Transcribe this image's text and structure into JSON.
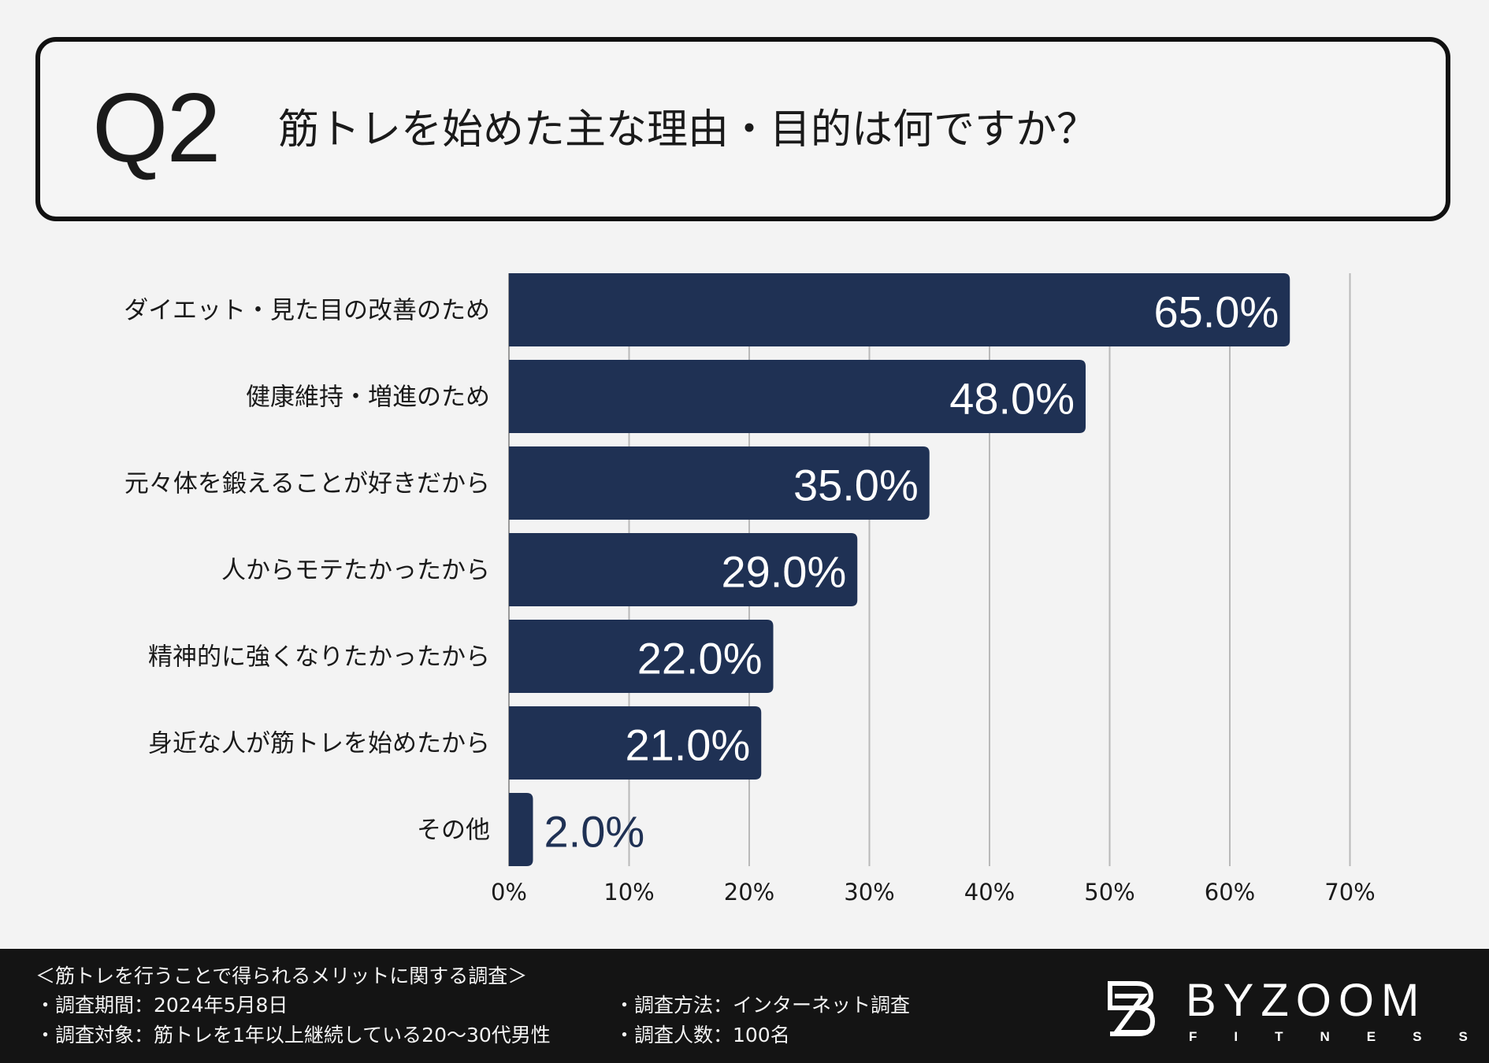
{
  "question": {
    "number": "Q2",
    "text": "筋トレを始めた主な理由・目的は何ですか？"
  },
  "chart_data": {
    "type": "bar",
    "orientation": "horizontal",
    "title": "筋トレを始めた主な理由・目的は何ですか？",
    "categories": [
      "ダイエット・見た目の改善のため",
      "健康維持・増進のため",
      "元々体を鍛えることが好きだから",
      "人からモテたかったから",
      "精神的に強くなりたかったから",
      "身近な人が筋トレを始めたから",
      "その他"
    ],
    "values": [
      65.0,
      48.0,
      35.0,
      29.0,
      22.0,
      21.0,
      2.0
    ],
    "value_labels": [
      "65.0%",
      "48.0%",
      "35.0%",
      "29.0%",
      "22.0%",
      "21.0%",
      "2.0%"
    ],
    "xlim": [
      0,
      70
    ],
    "xticks": [
      0,
      10,
      20,
      30,
      40,
      50,
      60,
      70
    ],
    "xtick_labels": [
      "0%",
      "10%",
      "20%",
      "30%",
      "40%",
      "50%",
      "60%",
      "70%"
    ],
    "grid": true,
    "bar_color": "#1f3154"
  },
  "footer": {
    "survey_title": "＜筋トレを行うことで得られるメリットに関する調査＞",
    "period": "・調査期間：2024年5月8日",
    "target": "・調査対象：筋トレを1年以上継続している20〜30代男性",
    "method": "・調査方法：インターネット調査",
    "respondents": "・調査人数：100名"
  },
  "brand": {
    "name": "BYZOOM",
    "sub": "FITNESS"
  }
}
